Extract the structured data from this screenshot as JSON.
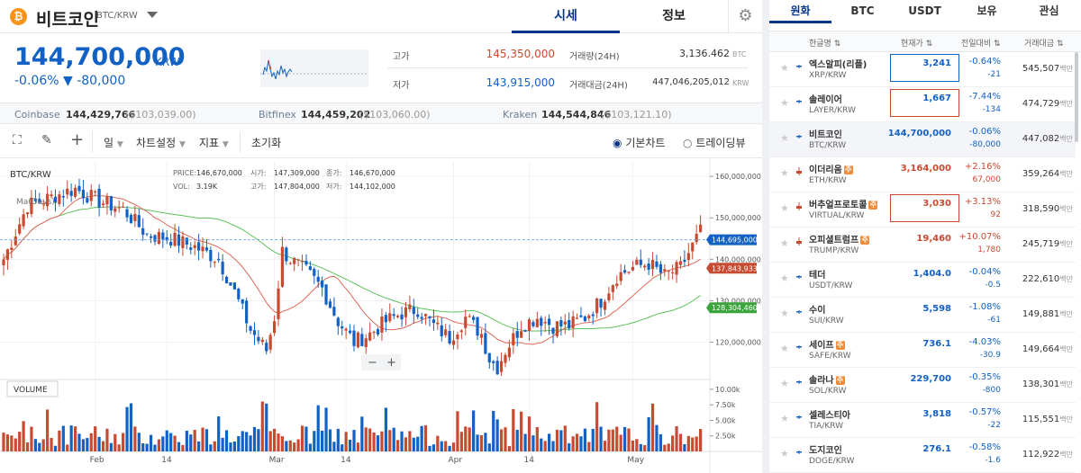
{
  "header": {
    "coin_name": "비트코인",
    "coin_pair": "BTC/KRW",
    "coin_icon": "bitcoin-icon",
    "tabs": [
      "시세",
      "정보"
    ],
    "active_tab": "시세"
  },
  "price": {
    "current": "144,700,000",
    "unit": "KRW",
    "change": "-0.06% ▼ -80,000"
  },
  "stats": {
    "high_label": "고가",
    "high_value": "145,350,000",
    "low_label": "저가",
    "low_value": "143,915,000",
    "vol24_label": "거래량(24H)",
    "vol24_value": "3,136.462",
    "vol24_unit": "BTC",
    "amt24_label": "거래대금(24H)",
    "amt24_value": "447,046,205,012",
    "amt24_unit": "KRW"
  },
  "exchanges": [
    {
      "name": "Coinbase",
      "krw": "144,429,766",
      "usd": "($103,039.00)"
    },
    {
      "name": "Bitfinex",
      "krw": "144,459,202",
      "usd": "($103,060.00)"
    },
    {
      "name": "Kraken",
      "krw": "144,544,846",
      "usd": "($103,121.10)"
    }
  ],
  "toolbar": {
    "interval": "일",
    "chart_settings": "차트설정",
    "indicators": "지표",
    "reset": "초기화",
    "basic_chart": "기본차트",
    "tradingview": "트레이딩뷰"
  },
  "chart_info": {
    "pair": "BTC/KRW",
    "legend_text": "Ma(Days)",
    "price_lbl": "PRICE:",
    "price_val": "146,670,000",
    "vol_lbl": "VOL:",
    "vol_val": "3.19K",
    "open_lbl": "시가:",
    "open_val": "147,309,000",
    "high_lbl": "고가:",
    "high_val": "147,804,000",
    "close_lbl": "종가:",
    "close_val": "146,670,000",
    "low_lbl": "저가:",
    "low_val": "144,102,000",
    "volume_label": "VOLUME",
    "zoom_minus": "−",
    "zoom_plus": "+"
  },
  "chart_data": {
    "type": "candlestick",
    "y_ticks": [
      "160,000,000",
      "150,000,000",
      "140,000,000",
      "130,000,000",
      "120,000,000"
    ],
    "y_tick_values": [
      160000000,
      150000000,
      140000000,
      130000000,
      120000000
    ],
    "ylim": [
      111000000,
      163500000
    ],
    "vol_ticks": [
      "10.00k",
      "7.50k",
      "5.00k",
      "2.50k"
    ],
    "vol_tick_values": [
      10000,
      7500,
      5000,
      2500
    ],
    "vol_max": 11000,
    "x_ticks": [
      {
        "label": "Feb",
        "idx": 23
      },
      {
        "label": "14",
        "idx": 41
      },
      {
        "label": "Mar",
        "idx": 68
      },
      {
        "label": "14",
        "idx": 86
      },
      {
        "label": "Apr",
        "idx": 113
      },
      {
        "label": "14",
        "idx": 132
      },
      {
        "label": "May",
        "idx": 158
      }
    ],
    "badges": [
      {
        "label": "144,695,000",
        "value": 144695000,
        "color": "#1261c4"
      },
      {
        "label": "137,843,933",
        "value": 137843933,
        "color": "#c84a31"
      },
      {
        "label": "128,304,460",
        "value": 128304460,
        "color": "#3aa53a"
      }
    ],
    "ma_short_color": "#e0695a",
    "ma_long_color": "#5cc25c",
    "up_color": "#c84a31",
    "down_color": "#1261c4"
  },
  "market": {
    "tabs": [
      "원화",
      "BTC",
      "USDT",
      "보유",
      "관심"
    ],
    "active_tab": "원화",
    "columns": [
      "한글명 ⇅",
      "현재가 ⇅",
      "전일대비 ⇅",
      "거래대금 ⇅"
    ],
    "volume_unit": "백만",
    "rows": [
      {
        "name": "엑스알피(리플)",
        "sym": "XRP/KRW",
        "price": "3,241",
        "pct": "-0.64%",
        "chg": "-21",
        "vol": "545,507",
        "dir": "down",
        "box": "blue",
        "warn": false
      },
      {
        "name": "솔레이어",
        "sym": "LAYER/KRW",
        "price": "1,667",
        "pct": "-7.44%",
        "chg": "-134",
        "vol": "474,729",
        "dir": "down",
        "box": "red",
        "warn": false
      },
      {
        "name": "비트코인",
        "sym": "BTC/KRW",
        "price": "144,700,000",
        "pct": "-0.06%",
        "chg": "-80,000",
        "vol": "447,082",
        "dir": "down",
        "box": "",
        "warn": false,
        "selected": true
      },
      {
        "name": "이더리움",
        "sym": "ETH/KRW",
        "price": "3,164,000",
        "pct": "+2.16%",
        "chg": "67,000",
        "vol": "359,264",
        "dir": "up",
        "box": "",
        "warn": true
      },
      {
        "name": "버추얼프로토콜",
        "sym": "VIRTUAL/KRW",
        "price": "3,030",
        "pct": "+3.13%",
        "chg": "92",
        "vol": "318,590",
        "dir": "up",
        "box": "red",
        "warn": true
      },
      {
        "name": "오피셜트럼프",
        "sym": "TRUMP/KRW",
        "price": "19,460",
        "pct": "+10.07%",
        "chg": "1,780",
        "vol": "245,719",
        "dir": "up",
        "box": "",
        "warn": true
      },
      {
        "name": "테더",
        "sym": "USDT/KRW",
        "price": "1,404.0",
        "pct": "-0.04%",
        "chg": "-0.5",
        "vol": "222,610",
        "dir": "down",
        "box": "",
        "warn": false
      },
      {
        "name": "수이",
        "sym": "SUI/KRW",
        "price": "5,598",
        "pct": "-1.08%",
        "chg": "-61",
        "vol": "149,881",
        "dir": "down",
        "box": "",
        "warn": false
      },
      {
        "name": "세이프",
        "sym": "SAFE/KRW",
        "price": "736.1",
        "pct": "-4.03%",
        "chg": "-30.9",
        "vol": "149,664",
        "dir": "down",
        "box": "",
        "warn": true
      },
      {
        "name": "솔라나",
        "sym": "SOL/KRW",
        "price": "229,700",
        "pct": "-0.35%",
        "chg": "-800",
        "vol": "138,301",
        "dir": "down",
        "box": "",
        "warn": true
      },
      {
        "name": "셀레스티아",
        "sym": "TIA/KRW",
        "price": "3,818",
        "pct": "-0.57%",
        "chg": "-22",
        "vol": "115,551",
        "dir": "down",
        "box": "",
        "warn": false
      },
      {
        "name": "도지코인",
        "sym": "DOGE/KRW",
        "price": "276.1",
        "pct": "-0.58%",
        "chg": "-1.6",
        "vol": "112,922",
        "dir": "down",
        "box": "",
        "warn": false
      }
    ]
  }
}
